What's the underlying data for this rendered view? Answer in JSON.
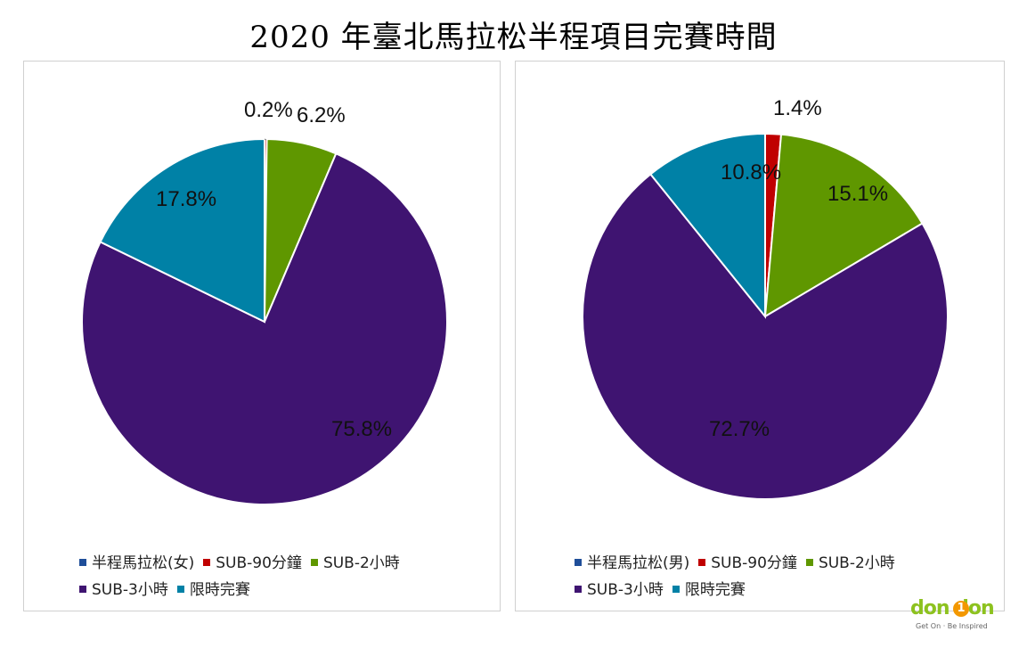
{
  "title": "2020 年臺北馬拉松半程項目完賽時間",
  "chart_data": [
    {
      "type": "pie",
      "slices": [
        {
          "label": "SUB-90分鐘",
          "value": 0.2,
          "display": "0.2%",
          "color": "#c00000"
        },
        {
          "label": "SUB-2小時",
          "value": 6.2,
          "display": "6.2%",
          "color": "#5f9700"
        },
        {
          "label": "SUB-3小時",
          "value": 75.8,
          "display": "75.8%",
          "color": "#3f1471"
        },
        {
          "label": "限時完賽",
          "value": 17.8,
          "display": "17.8%",
          "color": "#0081a6"
        }
      ],
      "legend": {
        "placement": "bottom",
        "entries": [
          {
            "label": "半程馬拉松(女)",
            "color": "#1f4e99"
          },
          {
            "label": "SUB-90分鐘",
            "color": "#c00000"
          },
          {
            "label": "SUB-2小時",
            "color": "#5f9700"
          },
          {
            "label": "SUB-3小時",
            "color": "#3f1471"
          },
          {
            "label": "限時完賽",
            "color": "#0081a6"
          }
        ]
      }
    },
    {
      "type": "pie",
      "slices": [
        {
          "label": "SUB-90分鐘",
          "value": 1.4,
          "display": "1.4%",
          "color": "#c00000"
        },
        {
          "label": "SUB-2小時",
          "value": 15.1,
          "display": "15.1%",
          "color": "#5f9700"
        },
        {
          "label": "SUB-3小時",
          "value": 72.7,
          "display": "72.7%",
          "color": "#3f1471"
        },
        {
          "label": "限時完賽",
          "value": 10.8,
          "display": "10.8%",
          "color": "#0081a6"
        }
      ],
      "legend": {
        "placement": "bottom",
        "entries": [
          {
            "label": "半程馬拉松(男)",
            "color": "#1f4e99"
          },
          {
            "label": "SUB-90分鐘",
            "color": "#c00000"
          },
          {
            "label": "SUB-2小時",
            "color": "#5f9700"
          },
          {
            "label": "SUB-3小時",
            "color": "#3f1471"
          },
          {
            "label": "限時完賽",
            "color": "#0081a6"
          }
        ]
      }
    }
  ],
  "logo": {
    "text": "don don",
    "one": "1",
    "tagline": "Get On · Be Inspired"
  }
}
